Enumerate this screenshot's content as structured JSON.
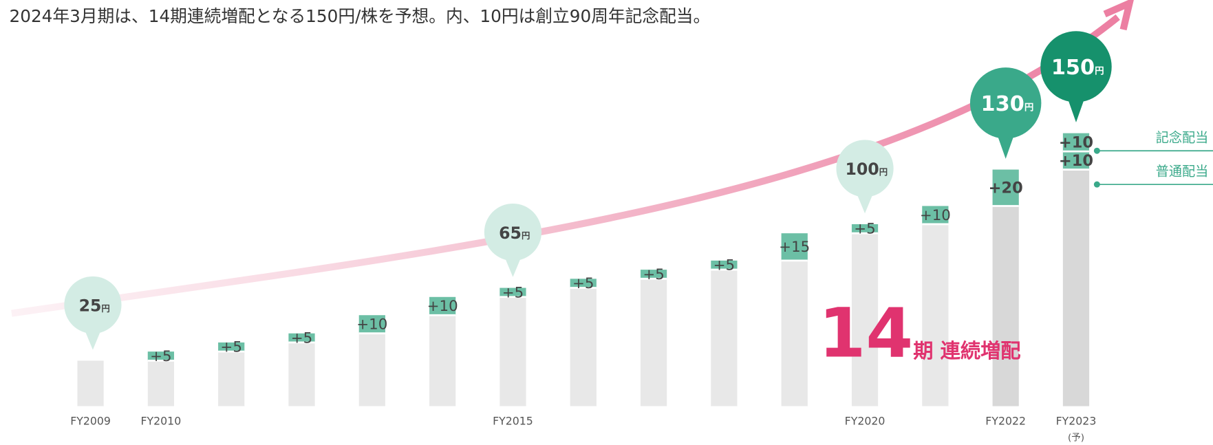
{
  "chart_data": {
    "type": "stacked-bar",
    "title": "2024年3月期は、14期連続増配となる150円/株を予想。内、10円は創立90周年記念配当。",
    "categories": [
      "FY2009",
      "FY2010",
      null,
      null,
      null,
      null,
      "FY2015",
      null,
      null,
      null,
      null,
      "FY2020",
      null,
      "FY2022",
      "FY2023"
    ],
    "forecast_mark": "(予)",
    "ylim": [
      0,
      150
    ],
    "series": [
      {
        "values": [
          25,
          25,
          30,
          35,
          40,
          50,
          60,
          65,
          70,
          75,
          80,
          95,
          100,
          110,
          130
        ],
        "colors": [
          "#e8e8e8",
          "#e8e8e8",
          "#e8e8e8",
          "#e8e8e8",
          "#e8e8e8",
          "#e8e8e8",
          "#e8e8e8",
          "#e8e8e8",
          "#e8e8e8",
          "#e8e8e8",
          "#e8e8e8",
          "#e8e8e8",
          "#e8e8e8",
          "#d8d8d8",
          "#d8d8d8"
        ]
      },
      {
        "name": "普通配当",
        "color": "#6cbfa5",
        "values": [
          null,
          5,
          5,
          5,
          10,
          10,
          5,
          5,
          5,
          5,
          15,
          5,
          10,
          20,
          10
        ],
        "value_labels": [
          null,
          "+5",
          "+5",
          "+5",
          "+10",
          "+10",
          "+5",
          "+5",
          "+5",
          "+5",
          "+15",
          "+5",
          "+10",
          "+20",
          "+10"
        ]
      },
      {
        "name": "記念配当",
        "color": "#6cbfa5",
        "values": [
          null,
          null,
          null,
          null,
          null,
          null,
          null,
          null,
          null,
          null,
          null,
          null,
          null,
          null,
          10
        ],
        "value_labels": [
          null,
          null,
          null,
          null,
          null,
          null,
          null,
          null,
          null,
          null,
          null,
          null,
          null,
          null,
          "+10"
        ]
      }
    ],
    "callouts": [
      {
        "category": "FY2009",
        "value": 25,
        "unit": "円",
        "color": "#d3ece4",
        "text_color": "#444444"
      },
      {
        "category": "FY2015",
        "value": 65,
        "unit": "円",
        "color": "#d3ece4",
        "text_color": "#444444"
      },
      {
        "category": "FY2020",
        "value": 100,
        "unit": "円",
        "color": "#d3ece4",
        "text_color": "#444444"
      },
      {
        "category": "FY2022",
        "value": 130,
        "unit": "円",
        "color": "#3aa98a",
        "text_color": "#ffffff"
      },
      {
        "category": "FY2023",
        "value": 150,
        "unit": "円",
        "color": "#16916c",
        "text_color": "#ffffff"
      }
    ],
    "highlight": {
      "number": 14,
      "text": "期 連続増配",
      "color": "#e0336f"
    }
  }
}
